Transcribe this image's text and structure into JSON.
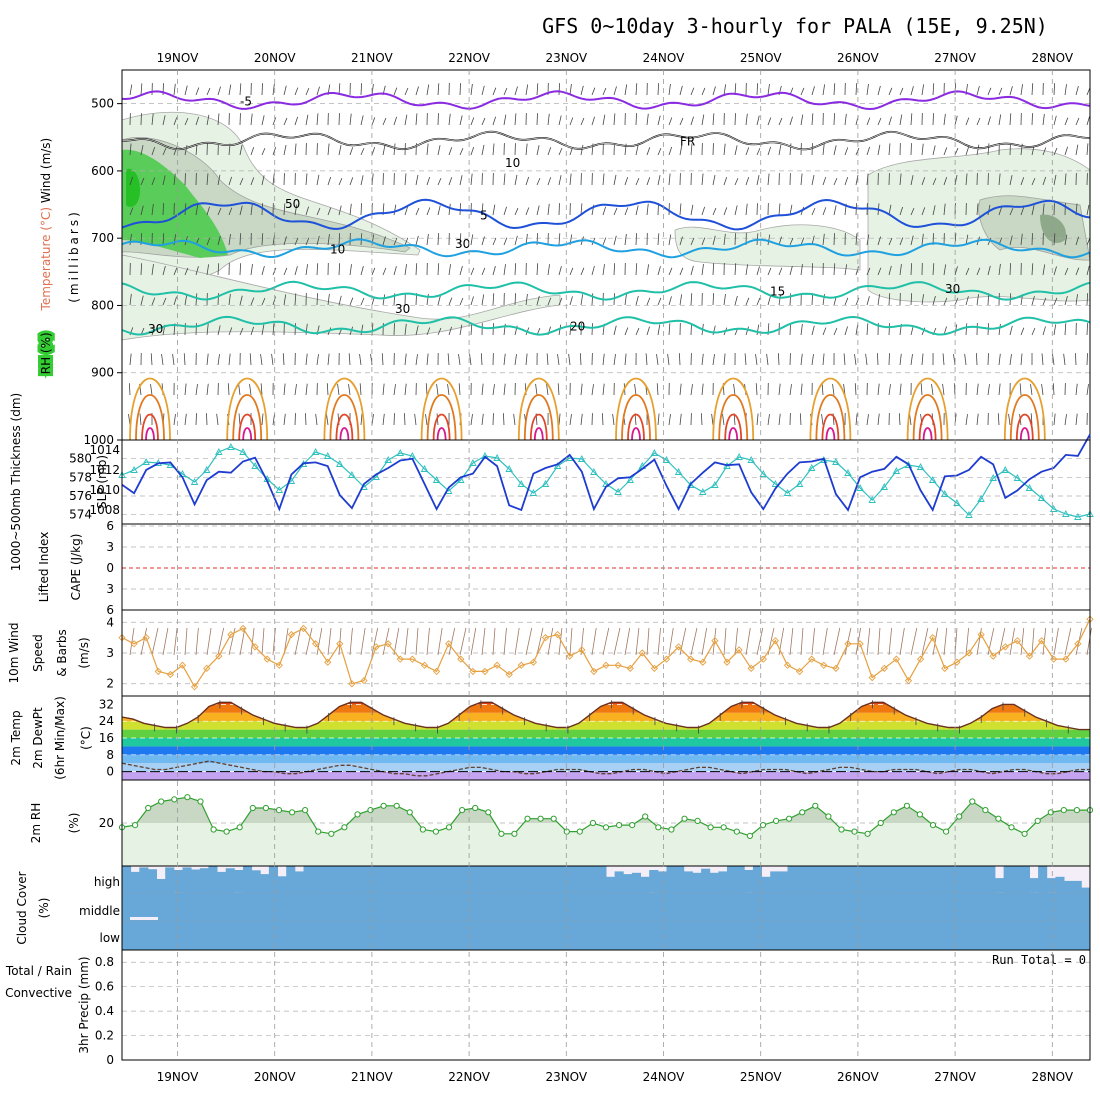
{
  "title": "GFS 0~10day 3-hourly for PALA (15E, 9.25N)",
  "dates": [
    "19NOV",
    "20NOV",
    "21NOV",
    "22NOV",
    "23NOV",
    "24NOV",
    "25NOV",
    "26NOV",
    "27NOV",
    "28NOV"
  ],
  "colors": {
    "rh_green": "#33cc33",
    "temp_purple": "#8a2be2",
    "temp_blue": "#1e50d8",
    "temp_cyan": "#1fa0e0",
    "temp_teal": "#20c0a8",
    "thick": "#1e3cd0",
    "slp": "#30c0c0",
    "wind": "#e6a040",
    "cloud": "#68a8d8",
    "rh2m": "#30a030",
    "lifted": "#e03030",
    "cape": "#c080f0"
  },
  "chart_data": [
    {
      "type": "contour",
      "panel": "upper-air",
      "ylabel_parts": [
        "Wind (m/s)",
        "Temperature (°C)",
        "RH (%)",
        "(millibars)"
      ],
      "y_ticks": [
        500,
        600,
        700,
        800,
        900,
        1000
      ],
      "ylim": [
        1000,
        450
      ],
      "temperature_isotherms": [
        {
          "label": "-5",
          "pressure": 495
        },
        {
          "label": "FR",
          "pressure": 555
        },
        {
          "label": "5",
          "pressure": 665
        },
        {
          "label": "10",
          "pressure": 715
        },
        {
          "label": "15",
          "pressure": 778
        },
        {
          "label": "20",
          "pressure": 830
        }
      ],
      "rh_labels": [
        "10",
        "30",
        "50"
      ]
    },
    {
      "type": "line",
      "panel": "thickness-slp",
      "series": [
        {
          "name": "1000~500mb Thickness (dm)",
          "y_ticks": [
            574,
            576,
            578,
            580
          ],
          "values": [
            577.2,
            576.3,
            578.8,
            579.5,
            579.6,
            578.0,
            575.1,
            577.7,
            578.6,
            578.5,
            579.7,
            580.1,
            577.6,
            574.6,
            578.3,
            579.5,
            579.6,
            579.2,
            576.1,
            574.7,
            577.3,
            578.3,
            579.0,
            579.8,
            580.0,
            577.3,
            574.6,
            576.9,
            578.0,
            578.4,
            580.2,
            579.2,
            575.0,
            574.5,
            578.4,
            579.0,
            579.4,
            580.4,
            578.6,
            574.6,
            577.0,
            577.9,
            578.0,
            578.9,
            579.9,
            577.1,
            574.6,
            577.3,
            578.5,
            579.6,
            579.3,
            579.4,
            576.4,
            574.6,
            576.8,
            578.4,
            579.6,
            579.7,
            580.0,
            576.2,
            574.5,
            578.0,
            578.6,
            578.9,
            580.2,
            579.4,
            576.6,
            574.5,
            578.1,
            578.2,
            578.8,
            580.2,
            579.4,
            575.8,
            576.6,
            577.8,
            578.6,
            579.0,
            580.4,
            580.3,
            582.6
          ]
        },
        {
          "name": "SLP (mb)",
          "y_ticks": [
            1008,
            1010,
            1012,
            1014
          ],
          "values": [
            1011.5,
            1012.0,
            1012.8,
            1012.7,
            1012.5,
            1011.6,
            1010.8,
            1012.0,
            1013.8,
            1014.3,
            1013.8,
            1012.4,
            1011.1,
            1010.0,
            1010.9,
            1012.6,
            1013.8,
            1013.4,
            1012.6,
            1011.5,
            1010.3,
            1011.3,
            1013.0,
            1013.7,
            1013.4,
            1012.1,
            1011.0,
            1009.9,
            1011.0,
            1012.7,
            1013.4,
            1013.2,
            1012.1,
            1010.6,
            1009.7,
            1010.6,
            1012.4,
            1013.2,
            1013.1,
            1011.8,
            1010.6,
            1009.8,
            1011.0,
            1012.4,
            1013.7,
            1013.0,
            1011.8,
            1010.5,
            1009.8,
            1010.5,
            1012.4,
            1013.3,
            1013.0,
            1011.6,
            1010.6,
            1009.7,
            1010.6,
            1012.2,
            1013.0,
            1012.8,
            1011.7,
            1010.2,
            1009.0,
            1010.3,
            1011.9,
            1012.5,
            1012.3,
            1011.0,
            1009.6,
            1008.7,
            1007.5,
            1009.1,
            1011.2,
            1012.0,
            1011.2,
            1010.2,
            1009.2,
            1008.1,
            1007.6,
            1007.3,
            1007.6
          ]
        }
      ]
    },
    {
      "type": "line",
      "panel": "stability",
      "ylabel_parts": [
        "Lifted Index",
        "CAPE (J/kg)"
      ],
      "y_ticks": [
        "6",
        "3",
        "0",
        "3",
        "6"
      ],
      "ylim": [
        -6,
        6
      ],
      "lifted_index_values": [],
      "cape_values": []
    },
    {
      "type": "line",
      "panel": "10m-wind",
      "ylabel_parts": [
        "10m Wind",
        "Speed",
        "& Barbs",
        "(m/s)"
      ],
      "y_ticks": [
        2,
        3,
        4
      ],
      "ylim": [
        1.6,
        4.4
      ],
      "values": [
        3.5,
        3.3,
        3.5,
        2.4,
        2.3,
        2.6,
        1.9,
        2.5,
        2.9,
        3.6,
        3.8,
        3.2,
        2.8,
        2.6,
        3.6,
        3.8,
        3.3,
        2.7,
        3.3,
        2.0,
        2.1,
        3.2,
        3.3,
        2.8,
        2.8,
        2.6,
        2.4,
        3.3,
        2.8,
        2.4,
        2.4,
        2.6,
        2.3,
        2.6,
        2.7,
        3.5,
        3.6,
        2.9,
        3.1,
        2.4,
        2.6,
        2.6,
        2.5,
        3.0,
        2.5,
        2.8,
        3.2,
        2.8,
        2.7,
        3.4,
        2.7,
        3.1,
        2.5,
        2.8,
        3.4,
        2.6,
        2.4,
        2.8,
        2.6,
        2.5,
        3.3,
        3.3,
        2.2,
        2.5,
        2.8,
        2.1,
        2.8,
        3.5,
        2.5,
        2.7,
        3.0,
        3.6,
        2.9,
        3.2,
        3.4,
        2.9,
        3.4,
        2.8,
        2.8,
        3.3,
        4.1
      ]
    },
    {
      "type": "area",
      "panel": "2m-temp",
      "ylabel_parts": [
        "2m Temp",
        "2m DewPt",
        "(6hr Min/Max)",
        "(°C)"
      ],
      "y_ticks": [
        0,
        8,
        16,
        24,
        32
      ],
      "ylim": [
        -4,
        36
      ],
      "temperature_values": [
        26,
        25,
        23,
        22,
        21,
        21,
        23,
        26,
        31,
        33,
        33,
        30,
        27,
        25,
        23,
        22,
        21,
        21,
        23,
        27,
        31,
        33,
        33,
        30,
        27,
        25,
        23,
        22,
        21,
        21,
        23,
        27,
        31,
        33,
        33,
        30,
        27,
        25,
        23,
        22,
        21,
        21,
        23,
        27,
        31,
        33,
        33,
        30,
        27,
        25,
        23,
        22,
        21,
        21,
        23,
        27,
        31,
        33,
        33,
        30,
        27,
        25,
        23,
        22,
        21,
        21,
        23,
        27,
        31,
        33,
        33,
        30,
        27,
        25,
        23,
        22,
        21,
        21,
        23,
        26,
        30,
        32,
        32,
        29,
        26,
        24,
        22,
        21,
        20,
        20
      ],
      "dewpoint_values": [
        4,
        3,
        2,
        1,
        1,
        2,
        3,
        4,
        5,
        4,
        3,
        2,
        1,
        0,
        0,
        -1,
        -1,
        0,
        1,
        2,
        3,
        3,
        2,
        1,
        0,
        -1,
        -1,
        -2,
        -2,
        -1,
        0,
        1,
        2,
        2,
        1,
        0,
        0,
        -1,
        -1,
        0,
        1,
        1,
        1,
        0,
        -1,
        -1,
        0,
        1,
        1,
        0,
        -1,
        0,
        1,
        2,
        2,
        1,
        0,
        -1,
        0,
        1,
        1,
        1,
        0,
        -1,
        0,
        1,
        2,
        2,
        1,
        0,
        0,
        1,
        1,
        1,
        0,
        -1,
        0,
        1,
        1,
        0,
        -1,
        0,
        1,
        1,
        0,
        -1,
        -1,
        0,
        1,
        1
      ]
    },
    {
      "type": "area",
      "panel": "2m-rh",
      "ylabel_parts": [
        "2m RH",
        "(%)"
      ],
      "y_ticks": [
        20
      ],
      "ylim": [
        0,
        40
      ],
      "values": [
        18,
        19,
        27,
        30,
        31,
        32,
        30,
        17,
        16,
        18,
        27,
        27,
        26,
        25,
        26,
        16,
        15,
        18,
        24,
        26,
        28,
        28,
        25,
        17,
        16,
        18,
        26,
        27,
        25,
        15,
        15,
        22,
        22,
        22,
        16,
        16,
        20,
        18,
        19,
        19,
        23,
        18,
        17,
        22,
        21,
        18,
        18,
        16,
        14,
        19,
        21,
        22,
        25,
        28,
        23,
        17,
        16,
        15,
        20,
        25,
        28,
        24,
        19,
        16,
        23,
        30,
        26,
        22,
        18,
        15,
        21,
        25,
        26,
        26,
        26
      ]
    },
    {
      "type": "bar",
      "panel": "cloud-cover",
      "ylabel_parts": [
        "Cloud Cover",
        "(%)"
      ],
      "levels": [
        "high",
        "middle",
        "low"
      ],
      "high_values": [
        100,
        78,
        95,
        88,
        52,
        95,
        85,
        95,
        87,
        92,
        100,
        78,
        92,
        85,
        100,
        84,
        70,
        100,
        62,
        100,
        80,
        100,
        100,
        100,
        100,
        100,
        100,
        100,
        100,
        100,
        100,
        100,
        100,
        100,
        100,
        100,
        100,
        100,
        100,
        100,
        100,
        100,
        100,
        100,
        100,
        100,
        100,
        100,
        100,
        100,
        100,
        100,
        100,
        100,
        100,
        100,
        60,
        80,
        70,
        75,
        60,
        85,
        80,
        100,
        100,
        80,
        75,
        90,
        75,
        80,
        100,
        100,
        85,
        100,
        60,
        80,
        80,
        100,
        100,
        100,
        100,
        100,
        100,
        100,
        100,
        100,
        100,
        100,
        100,
        100,
        100,
        100,
        100,
        100,
        100,
        100,
        100,
        100,
        100,
        100,
        100,
        55,
        100,
        100,
        100,
        55,
        100,
        55,
        60,
        45,
        45,
        20
      ],
      "middle_values": [
        100,
        100,
        100,
        100,
        100,
        100,
        100,
        100,
        100,
        100,
        100,
        100,
        100,
        100,
        100,
        100,
        100,
        100,
        100,
        100,
        100,
        100,
        100,
        100,
        100,
        100,
        100,
        100,
        100,
        100,
        100,
        100,
        100,
        100,
        100,
        100,
        100,
        100,
        100,
        100,
        100,
        100,
        100,
        100,
        100,
        100,
        100,
        100,
        100,
        100,
        100,
        100,
        100,
        100,
        100,
        100,
        100,
        100,
        100,
        100,
        100,
        100,
        100,
        100,
        100,
        100,
        100,
        100,
        100,
        100,
        100,
        100,
        100,
        100,
        100,
        100,
        100,
        100,
        100,
        100,
        100
      ],
      "low_values": [
        100,
        100,
        100,
        100,
        100,
        100,
        100,
        100,
        100,
        100,
        100,
        100,
        100,
        100,
        100,
        100,
        100,
        100,
        100,
        100,
        100,
        100,
        100,
        100,
        100,
        100,
        100,
        100,
        100,
        100,
        100,
        100,
        100,
        100,
        100,
        100,
        100,
        100,
        100,
        100,
        100,
        100,
        100,
        100,
        100,
        100,
        100,
        100,
        100,
        100,
        100,
        100,
        100,
        100,
        100,
        100,
        100,
        100,
        100,
        100,
        100,
        100,
        100,
        100,
        100,
        100,
        100,
        100,
        100,
        100,
        100,
        100,
        100,
        100,
        100,
        100,
        100,
        100,
        100,
        100,
        100
      ]
    },
    {
      "type": "bar",
      "panel": "precip",
      "ylabel_parts": [
        "Total / Rain",
        "Convective",
        "3hr Precip (mm)"
      ],
      "annotation": "Run Total = 0",
      "y_ticks": [
        "0",
        "0.2",
        "0.4",
        "0.6",
        "0.8"
      ],
      "ylim": [
        0,
        0.9
      ],
      "values": []
    }
  ]
}
